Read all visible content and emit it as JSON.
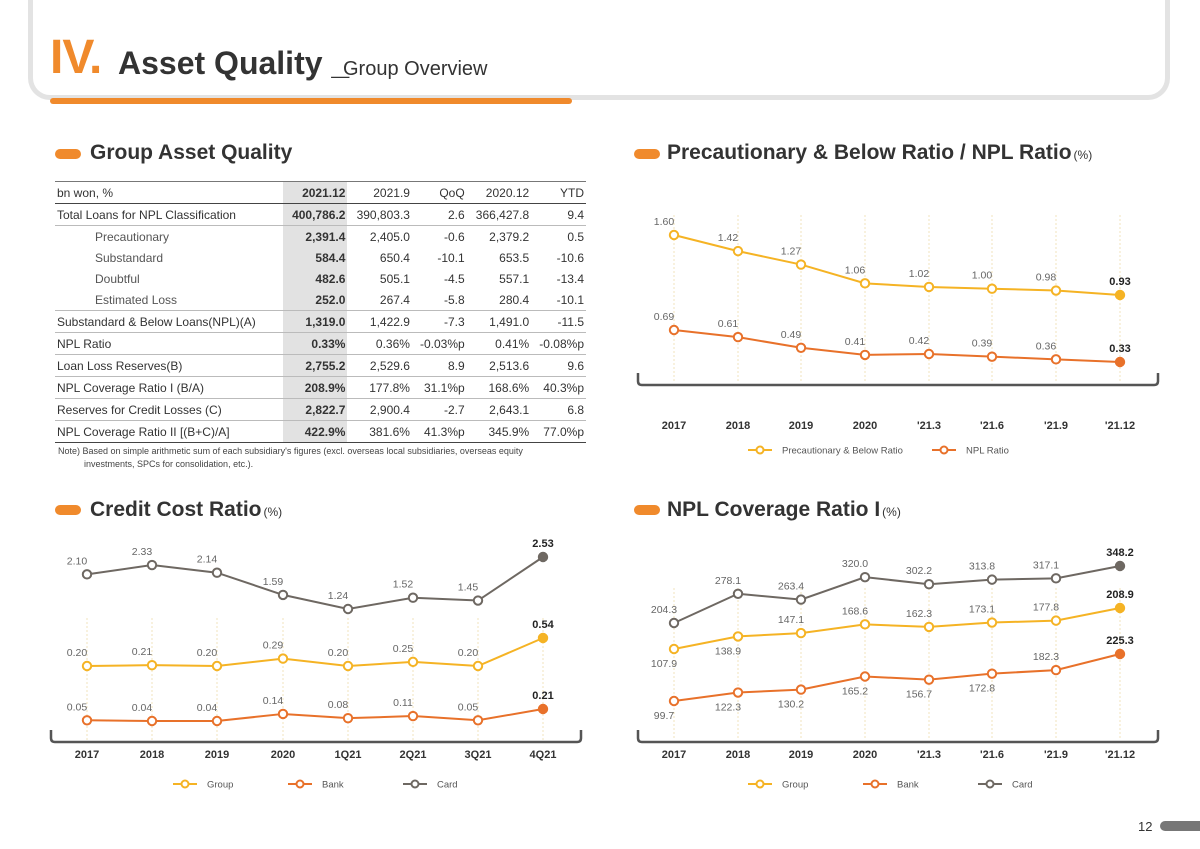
{
  "header": {
    "roman": "IV",
    "dot": ".",
    "title": "Asset Quality",
    "separator": "_",
    "subtitle": "Group Overview"
  },
  "page_number": "12",
  "colors": {
    "accent": "#f08a2c",
    "group": "#f5b324",
    "bank": "#e8712a",
    "card": "#6e6862",
    "precautionary": "#f5b324",
    "npl": "#e8712a"
  },
  "table": {
    "title": "Group Asset Quality",
    "columns": [
      "bn won, %",
      "2021.12",
      "2021.9",
      "QoQ",
      "2020.12",
      "YTD"
    ],
    "rows": [
      {
        "label": "Total Loans for NPL Classification",
        "cells": [
          "400,786.2",
          "390,803.3",
          "2.6",
          "366,427.8",
          "9.4"
        ],
        "indent": false,
        "line": true
      },
      {
        "label": "Precautionary",
        "cells": [
          "2,391.4",
          "2,405.0",
          "-0.6",
          "2,379.2",
          "0.5"
        ],
        "indent": true,
        "line": false
      },
      {
        "label": "Substandard",
        "cells": [
          "584.4",
          "650.4",
          "-10.1",
          "653.5",
          "-10.6"
        ],
        "indent": true,
        "line": false
      },
      {
        "label": "Doubtful",
        "cells": [
          "482.6",
          "505.1",
          "-4.5",
          "557.1",
          "-13.4"
        ],
        "indent": true,
        "line": false
      },
      {
        "label": "Estimated Loss",
        "cells": [
          "252.0",
          "267.4",
          "-5.8",
          "280.4",
          "-10.1"
        ],
        "indent": true,
        "line": true
      },
      {
        "label": "Substandard & Below Loans(NPL)(A)",
        "cells": [
          "1,319.0",
          "1,422.9",
          "-7.3",
          "1,491.0",
          "-11.5"
        ],
        "indent": false,
        "line": true
      },
      {
        "label": "NPL Ratio",
        "cells": [
          "0.33%",
          "0.36%",
          "-0.03%p",
          "0.41%",
          "-0.08%p"
        ],
        "indent": false,
        "line": true
      },
      {
        "label": "Loan Loss Reserves(B)",
        "cells": [
          "2,755.2",
          "2,529.6",
          "8.9",
          "2,513.6",
          "9.6"
        ],
        "indent": false,
        "line": true
      },
      {
        "label": "NPL Coverage Ratio I (B/A)",
        "cells": [
          "208.9%",
          "177.8%",
          "31.1%p",
          "168.6%",
          "40.3%p"
        ],
        "indent": false,
        "line": true
      },
      {
        "label": "Reserves for Credit Losses (C)",
        "cells": [
          "2,822.7",
          "2,900.4",
          "-2.7",
          "2,643.1",
          "6.8"
        ],
        "indent": false,
        "line": true
      },
      {
        "label": "NPL Coverage  Ratio II [(B+C)/A]",
        "cells": [
          "422.9%",
          "381.6%",
          "41.3%p",
          "345.9%",
          "77.0%p"
        ],
        "indent": false,
        "line": false
      }
    ],
    "note_line1": "Note) Based on simple arithmetic sum of each subsidiary's figures (excl. overseas local subsidiaries, overseas equity",
    "note_line2": "investments, SPCs for consolidation, etc.)."
  },
  "chart_data": [
    {
      "id": "precautionary",
      "type": "line",
      "title": "Precautionary & Below Ratio / NPL Ratio",
      "unit": "(%)",
      "categories": [
        "2017",
        "2018",
        "2019",
        "2020",
        "'21.3",
        "'21.6",
        "'21.9",
        "'21.12"
      ],
      "series": [
        {
          "name": "Precautionary & Below Ratio",
          "color": "#f5b324",
          "values": [
            1.6,
            1.42,
            1.27,
            1.06,
            1.02,
            1.0,
            0.98,
            0.93
          ],
          "labels": [
            "1.60",
            "1.42",
            "1.27",
            "1.06",
            "1.02",
            "1.00",
            "0.98",
            "0.93"
          ]
        },
        {
          "name": "NPL Ratio",
          "color": "#e8712a",
          "values": [
            0.69,
            0.61,
            0.49,
            0.41,
            0.42,
            0.39,
            0.36,
            0.33
          ],
          "labels": [
            "0.69",
            "0.61",
            "0.49",
            "0.41",
            "0.42",
            "0.39",
            "0.36",
            "0.33"
          ]
        }
      ]
    },
    {
      "id": "creditcost",
      "type": "line",
      "title": "Credit Cost Ratio",
      "unit": "(%)",
      "categories": [
        "2017",
        "2018",
        "2019",
        "2020",
        "1Q21",
        "2Q21",
        "3Q21",
        "4Q21"
      ],
      "series": [
        {
          "name": "Group",
          "color": "#f5b324",
          "values": [
            0.2,
            0.21,
            0.2,
            0.29,
            0.2,
            0.25,
            0.2,
            0.54
          ],
          "labels": [
            "0.20",
            "0.21",
            "0.20",
            "0.29",
            "0.20",
            "0.25",
            "0.20",
            "0.54"
          ]
        },
        {
          "name": "Bank",
          "color": "#e8712a",
          "values": [
            0.05,
            0.04,
            0.04,
            0.14,
            0.08,
            0.11,
            0.05,
            0.21
          ],
          "labels": [
            "0.05",
            "0.04",
            "0.04",
            "0.14",
            "0.08",
            "0.11",
            "0.05",
            "0.21"
          ]
        },
        {
          "name": "Card",
          "color": "#6e6862",
          "values": [
            2.1,
            2.33,
            2.14,
            1.59,
            1.24,
            1.52,
            1.45,
            2.53
          ],
          "labels": [
            "2.10",
            "2.33",
            "2.14",
            "1.59",
            "1.24",
            "1.52",
            "1.45",
            "2.53"
          ]
        }
      ]
    },
    {
      "id": "coverage",
      "type": "line",
      "title": "NPL Coverage Ratio I",
      "unit": "(%)",
      "categories": [
        "2017",
        "2018",
        "2019",
        "2020",
        "'21.3",
        "'21.6",
        "'21.9",
        "'21.12"
      ],
      "series": [
        {
          "name": "Group",
          "color": "#f5b324",
          "values": [
            107.9,
            138.9,
            147.1,
            168.6,
            162.3,
            173.1,
            177.8,
            208.9
          ],
          "labels": [
            "107.9",
            "138.9",
            "147.1",
            "168.6",
            "162.3",
            "173.1",
            "177.8",
            "208.9"
          ]
        },
        {
          "name": "Bank",
          "color": "#e8712a",
          "values": [
            99.7,
            122.3,
            130.2,
            165.2,
            156.7,
            172.8,
            182.3,
            225.3
          ],
          "labels": [
            "99.7",
            "122.3",
            "130.2",
            "165.2",
            "156.7",
            "172.8",
            "182.3",
            "225.3"
          ]
        },
        {
          "name": "Card",
          "color": "#6e6862",
          "values": [
            204.3,
            278.1,
            263.4,
            320.0,
            302.2,
            313.8,
            317.1,
            348.2
          ],
          "labels": [
            "204.3",
            "278.1",
            "263.4",
            "320.0",
            "302.2",
            "313.8",
            "317.1",
            "348.2"
          ]
        }
      ]
    }
  ]
}
